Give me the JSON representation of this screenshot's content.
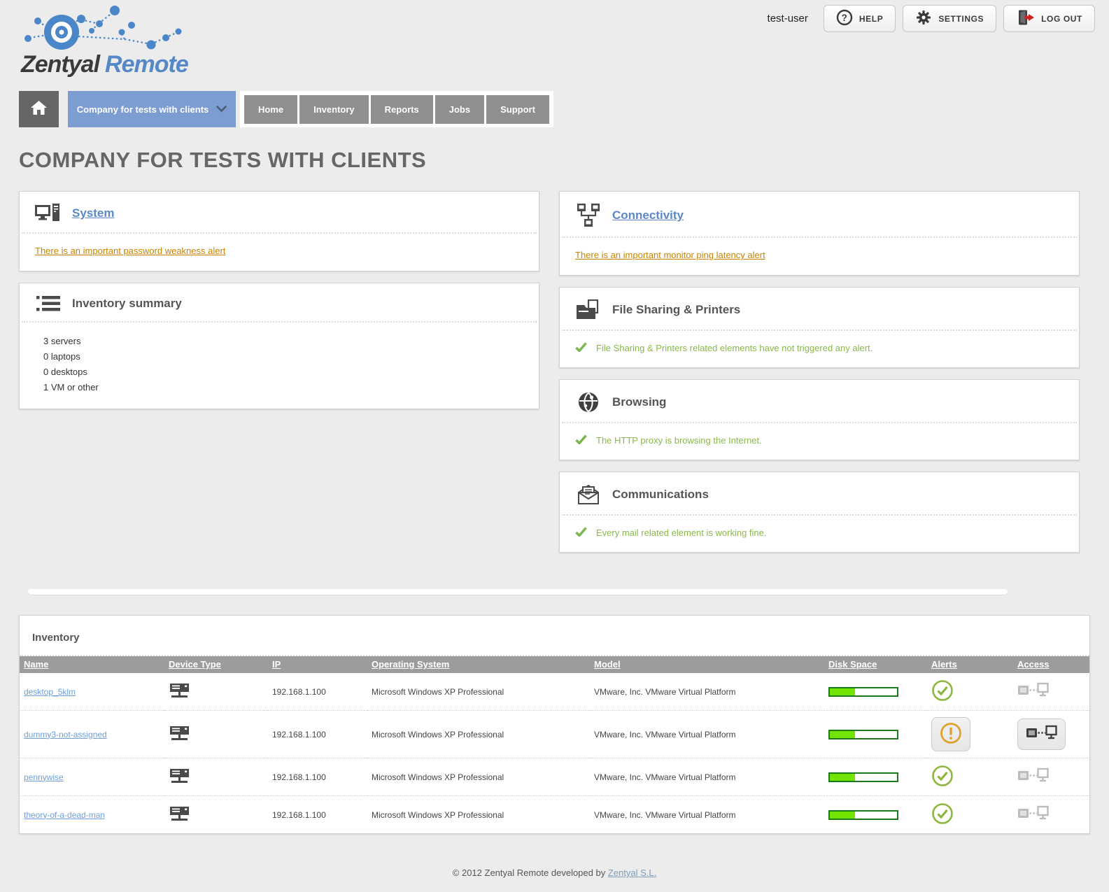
{
  "header": {
    "brand": "Zentyal",
    "brand_suffix": "Remote",
    "username": "test-user",
    "help_label": "HELP",
    "settings_label": "SETTINGS",
    "logout_label": "LOG OUT"
  },
  "nav": {
    "company_selector_label": "Company for tests with clients",
    "tabs": [
      {
        "label": "Home"
      },
      {
        "label": "Inventory"
      },
      {
        "label": "Reports"
      },
      {
        "label": "Jobs"
      },
      {
        "label": "Support"
      }
    ]
  },
  "page_title": "COMPANY FOR TESTS WITH CLIENTS",
  "cards": {
    "system": {
      "title": "System",
      "alert": "There is an important password weakness alert"
    },
    "connectivity": {
      "title": "Connectivity",
      "alert": "There is an important monitor ping latency alert"
    },
    "inventory_summary": {
      "title": "Inventory summary",
      "items": [
        {
          "text": "3 servers"
        },
        {
          "text": "0 laptops"
        },
        {
          "text": "0 desktops"
        },
        {
          "text": "1 VM or other"
        }
      ]
    },
    "file_sharing": {
      "title": "File Sharing & Printers",
      "status": "File Sharing & Printers related elements have not triggered any alert."
    },
    "browsing": {
      "title": "Browsing",
      "status": "The HTTP proxy is browsing the Internet."
    },
    "communications": {
      "title": "Communications",
      "status": "Every mail related element is working fine."
    }
  },
  "inventory": {
    "title": "Inventory",
    "columns": {
      "name": "Name",
      "device_type": "Device Type",
      "ip": "IP",
      "os": "Operating System",
      "model": "Model",
      "disk": "Disk Space",
      "alerts": "Alerts",
      "access": "Access"
    },
    "rows": [
      {
        "name": "desktop_5klm",
        "ip": "192.168.1.100",
        "os": "Microsoft Windows XP Professional",
        "model": "VMware, Inc. VMware Virtual Platform",
        "disk_percent": 38,
        "alert_status": "ok",
        "access_active": false
      },
      {
        "name": "dummy3-not-assigned",
        "ip": "192.168.1.100",
        "os": "Microsoft Windows XP Professional",
        "model": "VMware, Inc. VMware Virtual Platform",
        "disk_percent": 38,
        "alert_status": "warning",
        "access_active": true
      },
      {
        "name": "pennywise",
        "ip": "192.168.1.100",
        "os": "Microsoft Windows XP Professional",
        "model": "VMware, Inc. VMware Virtual Platform",
        "disk_percent": 38,
        "alert_status": "ok",
        "access_active": false
      },
      {
        "name": "theory-of-a-dead-man",
        "ip": "192.168.1.100",
        "os": "Microsoft Windows XP Professional",
        "model": "VMware, Inc. VMware Virtual Platform",
        "disk_percent": 38,
        "alert_status": "ok",
        "access_active": false
      }
    ]
  },
  "footer": {
    "text": "© 2012 Zentyal Remote developed by",
    "link": "Zentyal S.L."
  },
  "colors": {
    "accent_blue": "#7b9dd1",
    "link_blue": "#5b87c8",
    "row_link_blue": "#6fa0d8",
    "warning_orange": "#c78500",
    "warn_icon_orange": "#dfa22f",
    "success_green": "#8bb84a",
    "disk_fill_green": "#72e400",
    "disk_border_green": "#1c7a1c",
    "table_header_gray": "#9c9c9c"
  },
  "icons": {
    "help": "question-mark-circle",
    "settings": "gear",
    "logout": "door-with-red-arrow",
    "home": "house",
    "company_dropdown": "chevron-down",
    "system": "desktop-computer",
    "connectivity": "network-topology",
    "inventory_summary": "list",
    "file_sharing": "folder-with-document",
    "browsing": "globe",
    "communications": "open-envelope-letter",
    "status_ok": "check-mark",
    "alert_ok": "check-circle",
    "alert_warning": "exclamation-circle",
    "access": "pc-link-monitor",
    "device_server": "server"
  }
}
